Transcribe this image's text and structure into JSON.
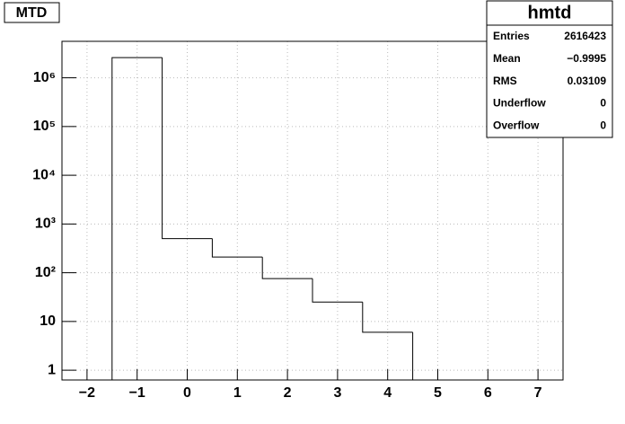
{
  "chart_data": {
    "type": "histogram",
    "title": "MTD",
    "bins": [
      -2.5,
      -1.5,
      -0.5,
      0.5,
      1.5,
      2.5,
      3.5,
      4.5,
      5.5,
      6.5,
      7.5
    ],
    "values": [
      0,
      2600000,
      500,
      210,
      76,
      25,
      6,
      0,
      0,
      0
    ],
    "color": "#000000",
    "xlim": [
      -2.5,
      7.5
    ],
    "xticks": [
      {
        "value": -2,
        "label": "−2"
      },
      {
        "value": -1,
        "label": "−1"
      },
      0,
      1,
      2,
      3,
      4,
      5,
      6,
      7
    ],
    "ylim": [
      0.63,
      5600000
    ],
    "log_y": true,
    "yticks": [
      1,
      10,
      {
        "value": 100,
        "label": "10²"
      },
      {
        "value": 1000,
        "label": "10³"
      },
      {
        "value": 10000,
        "label": "10⁴"
      },
      {
        "value": 100000,
        "label": "10⁵"
      },
      {
        "value": 1000000,
        "label": "10⁶"
      }
    ],
    "grid": true,
    "stats": {
      "title": "hmtd",
      "rows": [
        [
          "Entries",
          "2616423"
        ],
        [
          "Mean",
          "−0.9995"
        ],
        [
          "RMS",
          "0.03109"
        ],
        [
          "Underflow",
          "0"
        ],
        [
          "Overflow",
          "0"
        ]
      ]
    }
  }
}
